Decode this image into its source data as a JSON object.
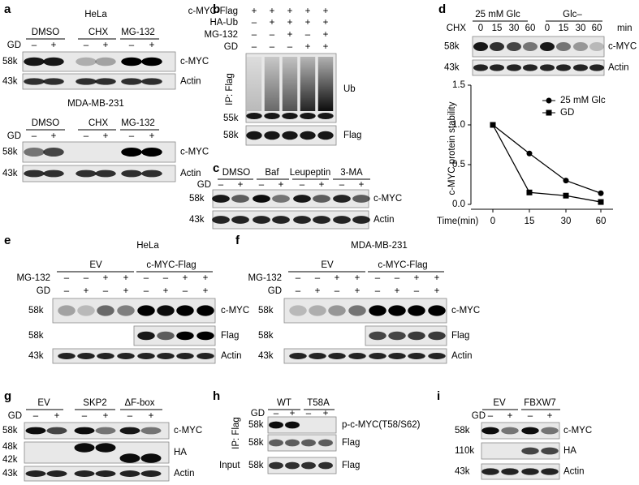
{
  "panels": [
    {
      "label": "a",
      "sections": [
        {
          "title": "HeLa",
          "groups": [
            "DMSO",
            "CHX",
            "MG-132"
          ],
          "rows": [
            {
              "name": "GD",
              "signs": [
                "–",
                "+",
                "–",
                "+",
                "–",
                "+"
              ]
            }
          ],
          "blots": [
            {
              "sizes": [
                "58k"
              ],
              "protein": "c-MYC"
            },
            {
              "sizes": [
                "43k"
              ],
              "protein": "Actin"
            }
          ]
        },
        {
          "title": "MDA-MB-231",
          "groups": [
            "DMSO",
            "CHX",
            "MG-132"
          ],
          "rows": [
            {
              "name": "GD",
              "signs": [
                "–",
                "+",
                "–",
                "+",
                "–",
                "+"
              ]
            }
          ],
          "blots": [
            {
              "sizes": [
                "58k"
              ],
              "protein": "c-MYC"
            },
            {
              "sizes": [
                "43k"
              ],
              "protein": "Actin"
            }
          ]
        }
      ]
    },
    {
      "label": "b",
      "sections": [
        {
          "rows": [
            {
              "name": "c-MYC-Flag",
              "signs": [
                "+",
                "+",
                "+",
                "+",
                "+"
              ]
            },
            {
              "name": "HA-Ub",
              "signs": [
                "–",
                "+",
                "+",
                "+",
                "+"
              ]
            },
            {
              "name": "MG-132",
              "signs": [
                "–",
                "–",
                "+",
                "–",
                "+"
              ]
            },
            {
              "name": "GD",
              "signs": [
                "–",
                "–",
                "–",
                "+",
                "+"
              ]
            }
          ],
          "side_label": "IP: Flag",
          "blots": [
            {
              "sizes": [
                "55k"
              ],
              "protein": "Ub"
            },
            {
              "sizes": [
                "58k"
              ],
              "protein": "Flag"
            }
          ]
        }
      ]
    },
    {
      "label": "c",
      "sections": [
        {
          "groups": [
            "DMSO",
            "Baf",
            "Leupeptin",
            "3-MA"
          ],
          "rows": [
            {
              "name": "GD",
              "signs": [
                "–",
                "+",
                "–",
                "+",
                "–",
                "+",
                "–",
                "+"
              ]
            }
          ],
          "blots": [
            {
              "sizes": [
                "58k"
              ],
              "protein": "c-MYC"
            },
            {
              "sizes": [
                "43k"
              ],
              "protein": "Actin"
            }
          ]
        }
      ]
    },
    {
      "label": "d",
      "sections": [
        {
          "groups": [
            "25 mM Glc",
            "Glc–"
          ],
          "rows": [
            {
              "name": "CHX",
              "signs": [
                "0",
                "15",
                "30",
                "60",
                "0",
                "15",
                "30",
                "60"
              ]
            }
          ],
          "unit": "min",
          "blots": [
            {
              "sizes": [
                "58k"
              ],
              "protein": "c-MYC"
            },
            {
              "sizes": [
                "43k"
              ],
              "protein": "Actin"
            }
          ]
        }
      ],
      "chart": {
        "type": "line",
        "xlabel": "Time(min)",
        "ylabel": "c-MYC protein stability",
        "categories": [
          "0",
          "15",
          "30",
          "60"
        ],
        "ylim": [
          0,
          1.5
        ],
        "yticks": [
          {
            "value": 0,
            "label": "0.0"
          },
          0.5,
          {
            "value": 1,
            "label": "1.0"
          },
          1.5
        ],
        "series": [
          {
            "name": "25 mM Glc",
            "color": "#000000",
            "marker": "circle",
            "values": [
              1,
              0.64,
              0.3,
              0.14
            ]
          },
          {
            "name": "GD",
            "color": "#000000",
            "marker": "square",
            "values": [
              1,
              0.15,
              0.11,
              0.03
            ]
          }
        ]
      }
    },
    {
      "label": "e",
      "sections": [
        {
          "title": "HeLa",
          "groups": [
            "EV",
            "c-MYC-Flag"
          ],
          "rows": [
            {
              "name": "MG-132",
              "signs": [
                "–",
                "–",
                "+",
                "+",
                "–",
                "–",
                "+",
                "+"
              ]
            },
            {
              "name": "GD",
              "signs": [
                "–",
                "+",
                "–",
                "+",
                "–",
                "+",
                "–",
                "+"
              ]
            }
          ],
          "blots": [
            {
              "sizes": [
                "58k"
              ],
              "protein": "c-MYC"
            },
            {
              "sizes": [
                "58k"
              ],
              "protein": "Flag"
            },
            {
              "sizes": [
                "43k"
              ],
              "protein": "Actin"
            }
          ]
        }
      ]
    },
    {
      "label": "f",
      "sections": [
        {
          "title": "MDA-MB-231",
          "groups": [
            "EV",
            "c-MYC-Flag"
          ],
          "rows": [
            {
              "name": "MG-132",
              "signs": [
                "–",
                "–",
                "+",
                "+",
                "–",
                "–",
                "+",
                "+"
              ]
            },
            {
              "name": "GD",
              "signs": [
                "–",
                "+",
                "–",
                "+",
                "–",
                "+",
                "–",
                "+"
              ]
            }
          ],
          "blots": [
            {
              "sizes": [
                "58k"
              ],
              "protein": "c-MYC"
            },
            {
              "sizes": [
                "58k"
              ],
              "protein": "Flag"
            },
            {
              "sizes": [
                "43k"
              ],
              "protein": "Actin"
            }
          ]
        }
      ]
    },
    {
      "label": "g",
      "sections": [
        {
          "groups": [
            "EV",
            "SKP2",
            "ΔF-box"
          ],
          "rows": [
            {
              "name": "GD",
              "signs": [
                "–",
                "+",
                "–",
                "+",
                "–",
                "+"
              ]
            }
          ],
          "blots": [
            {
              "sizes": [
                "58k"
              ],
              "protein": "c-MYC"
            },
            {
              "sizes": [
                "48k",
                "42k"
              ],
              "protein": "HA"
            },
            {
              "sizes": [
                "43k"
              ],
              "protein": "Actin"
            }
          ]
        }
      ]
    },
    {
      "label": "h",
      "sections": [
        {
          "groups": [
            "WT",
            "T58A"
          ],
          "rows": [
            {
              "name": "GD",
              "signs": [
                "–",
                "+",
                "–",
                "+"
              ]
            }
          ],
          "side_label": "IP: Flag",
          "blots": [
            {
              "sizes": [
                "58k"
              ],
              "protein": "p-c-MYC(T58/S62)"
            },
            {
              "sizes": [
                "58k"
              ],
              "protein": "Flag"
            },
            {
              "prefix": "Input",
              "sizes": [
                "58k"
              ],
              "protein": "Flag"
            }
          ]
        }
      ]
    },
    {
      "label": "i",
      "sections": [
        {
          "groups": [
            "EV",
            "FBXW7"
          ],
          "rows": [
            {
              "name": "GD",
              "signs": [
                "–",
                "+",
                "–",
                "+"
              ]
            }
          ],
          "blots": [
            {
              "sizes": [
                "58k"
              ],
              "protein": "c-MYC"
            },
            {
              "sizes": [
                "110k"
              ],
              "protein": "HA"
            },
            {
              "sizes": [
                "43k"
              ],
              "protein": "Actin"
            }
          ]
        }
      ]
    }
  ]
}
